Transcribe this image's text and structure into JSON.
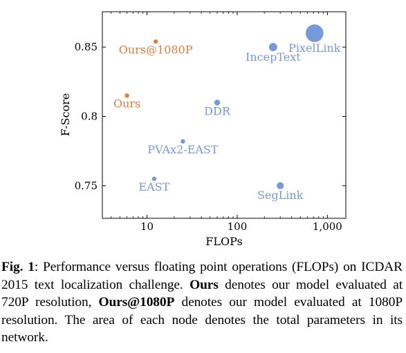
{
  "chart_data": {
    "type": "scatter",
    "xlabel": "FLOPs",
    "ylabel": "F-Score",
    "x_scale": "log",
    "xlim": [
      3.2,
      1600
    ],
    "ylim": [
      0.7265,
      0.8755
    ],
    "x_ticks": [
      {
        "value": 10,
        "label": "10"
      },
      {
        "value": 100,
        "label": "100"
      },
      {
        "value": 1000,
        "label": "1,000"
      }
    ],
    "y_ticks": [
      {
        "value": 0.75,
        "label": "0.75"
      },
      {
        "value": 0.8,
        "label": "0.8"
      },
      {
        "value": 0.85,
        "label": "0.85"
      }
    ],
    "grid": false,
    "points": [
      {
        "name": "Ours@1080P",
        "x": 12.5,
        "y": 0.854,
        "size": 4,
        "color": "#e07b39",
        "label_pos": "below"
      },
      {
        "name": "Ours",
        "x": 6,
        "y": 0.815,
        "size": 4,
        "color": "#e07b39",
        "label_pos": "below"
      },
      {
        "name": "PixelLink",
        "x": 720,
        "y": 0.86,
        "size": 64,
        "color": "#7799d9",
        "label_pos": "below"
      },
      {
        "name": "IncepText",
        "x": 250,
        "y": 0.85,
        "size": 14,
        "color": "#7799d9",
        "label_pos": "below"
      },
      {
        "name": "DDR",
        "x": 60,
        "y": 0.81,
        "size": 7,
        "color": "#7799d9",
        "label_pos": "below"
      },
      {
        "name": "PVAx2-EAST",
        "x": 25,
        "y": 0.782,
        "size": 4,
        "color": "#7799d9",
        "label_pos": "below"
      },
      {
        "name": "EAST",
        "x": 12,
        "y": 0.755,
        "size": 4,
        "color": "#7799d9",
        "label_pos": "below"
      },
      {
        "name": "SegLink",
        "x": 300,
        "y": 0.75,
        "size": 10,
        "color": "#7799d9",
        "label_pos": "below"
      }
    ]
  },
  "caption": {
    "fig_label": "Fig. 1",
    "part1": ": Performance versus floating point operations (FLOPs) on ICDAR 2015 text localization challenge. ",
    "bold1": "Ours",
    "part2": " denotes our model evaluated at 720P resolution, ",
    "bold2": "Ours@1080P",
    "part3": " denotes our model evaluated at 1080P resolution. The area of each node denotes the total parameters in its network."
  }
}
